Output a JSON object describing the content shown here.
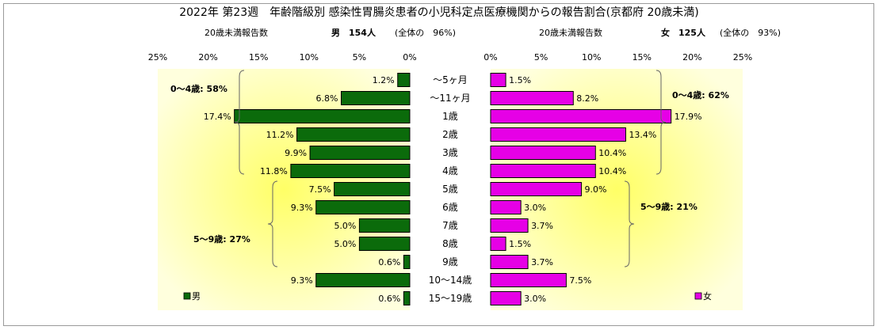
{
  "chart_data": {
    "type": "bar",
    "title": "2022年 第23週　年齢階級別 感染性胃腸炎患者の小児科定点医療機関からの報告割合(京都府 20歳未満)",
    "categories": [
      "～5ヶ月",
      "～11ヶ月",
      "1歳",
      "2歳",
      "3歳",
      "4歳",
      "5歳",
      "6歳",
      "7歳",
      "8歳",
      "9歳",
      "10～14歳",
      "15～19歳"
    ],
    "xlim": [
      0,
      25
    ],
    "ticks": [
      0,
      5,
      10,
      15,
      20,
      25
    ],
    "tick_labels": [
      "0%",
      "5%",
      "10%",
      "15%",
      "20%",
      "25%"
    ],
    "series": [
      {
        "name": "男",
        "color": "#0b6b0b",
        "header_label": "20歳未満報告数",
        "header_count": "男　154人",
        "header_share": "(全体の　96%)",
        "values": [
          1.2,
          6.8,
          17.4,
          11.2,
          9.9,
          11.8,
          7.5,
          9.3,
          5.0,
          5.0,
          0.6,
          9.3,
          0.6
        ],
        "value_labels": [
          "1.2%",
          "6.8%",
          "17.4%",
          "11.2%",
          "9.9%",
          "11.8%",
          "7.5%",
          "9.3%",
          "5.0%",
          "5.0%",
          "0.6%",
          "9.3%",
          "0.6%"
        ],
        "groups": [
          {
            "label": "0～4歳: 58%",
            "value": 58
          },
          {
            "label": "5～9歳: 27%",
            "value": 27
          }
        ]
      },
      {
        "name": "女",
        "color": "#e600e6",
        "header_label": "20歳未満報告数",
        "header_count": "女　125人",
        "header_share": "(全体の　93%)",
        "values": [
          1.5,
          8.2,
          17.9,
          13.4,
          10.4,
          10.4,
          9.0,
          3.0,
          3.7,
          1.5,
          3.7,
          7.5,
          3.0
        ],
        "value_labels": [
          "1.5%",
          "8.2%",
          "17.9%",
          "13.4%",
          "10.4%",
          "10.4%",
          "9.0%",
          "3.0%",
          "3.7%",
          "1.5%",
          "3.7%",
          "7.5%",
          "3.0%"
        ],
        "groups": [
          {
            "label": "0～4歳: 62%",
            "value": 62
          },
          {
            "label": "5～9歳: 21%",
            "value": 21
          }
        ]
      }
    ],
    "legend": [
      "男",
      "女"
    ],
    "legend_placement": "bottom-left / bottom-right",
    "grid": false,
    "background_colors": [
      "#ffffcc",
      "#ffff66"
    ]
  }
}
